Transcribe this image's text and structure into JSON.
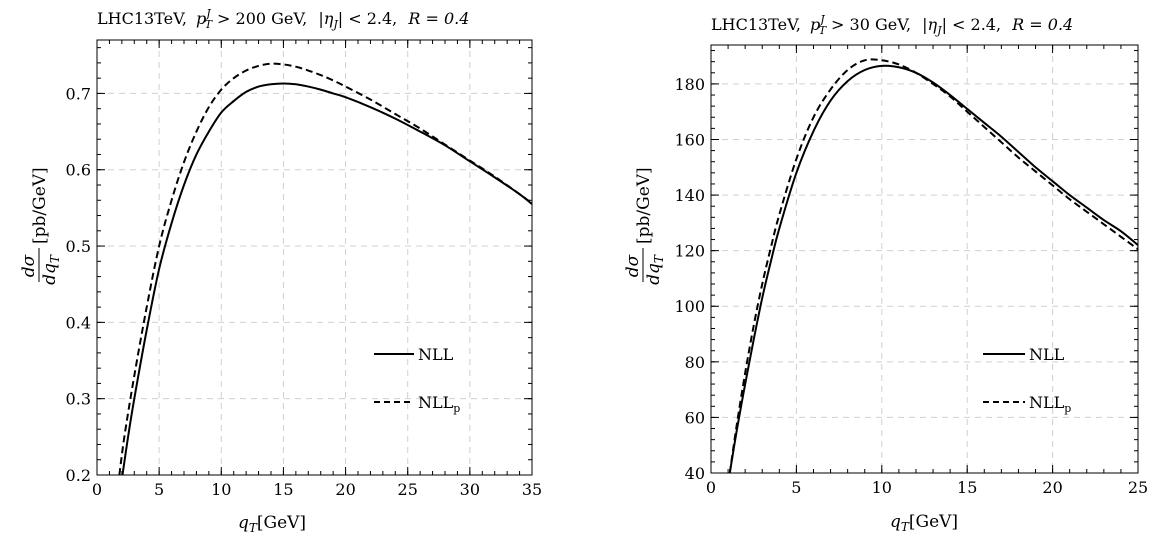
{
  "chart_data": [
    {
      "type": "line",
      "title_parts": {
        "prefix": "LHC13TeV,",
        "pt_sym": "p",
        "pt_sub": "T",
        "pt_sup": "J",
        "pt_cut": "> 200 GeV,",
        "eta_l": "|η",
        "eta_sub": "J",
        "eta_cut": "| < 2.4,",
        "r_lab": "R = 0.4"
      },
      "xlabel": {
        "sym": "q",
        "sub": "T",
        "unit": "[GeV]"
      },
      "ylabel": {
        "num": "dσ",
        "den": "dq",
        "den_sub": "T",
        "unit": "[pb/GeV]"
      },
      "xlim": [
        0,
        35
      ],
      "ylim": [
        0.2,
        0.77
      ],
      "xticks": [
        0,
        5,
        10,
        15,
        20,
        25,
        30,
        35
      ],
      "xticklabels": [
        "0",
        "5",
        "10",
        "15",
        "20",
        "25",
        "30",
        "35"
      ],
      "yticks": [
        0.2,
        0.3,
        0.4,
        0.5,
        0.6,
        0.7
      ],
      "yticklabels": [
        "0.2",
        "0.3",
        "0.4",
        "0.5",
        "0.6",
        "0.7"
      ],
      "grid": true,
      "legend_position": "right",
      "series": [
        {
          "name": "NLL",
          "style": "solid",
          "x": [
            2.05,
            2.5,
            3,
            4,
            5,
            6,
            7,
            8,
            9,
            10,
            11,
            12,
            13,
            14,
            15,
            16,
            17,
            18,
            19,
            20,
            22,
            24,
            26,
            28,
            30,
            32,
            34,
            35
          ],
          "y": [
            0.2,
            0.25,
            0.3,
            0.39,
            0.47,
            0.53,
            0.58,
            0.62,
            0.65,
            0.675,
            0.69,
            0.702,
            0.709,
            0.712,
            0.713,
            0.712,
            0.709,
            0.705,
            0.7,
            0.695,
            0.682,
            0.667,
            0.65,
            0.632,
            0.611,
            0.59,
            0.568,
            0.555
          ]
        },
        {
          "name": "NLL",
          "name_sub": "p",
          "style": "dashed",
          "x": [
            1.8,
            2.2,
            3,
            4,
            5,
            6,
            7,
            8,
            9,
            10,
            11,
            12,
            13,
            14,
            15,
            16,
            17,
            18,
            19,
            20,
            22,
            24,
            26,
            28,
            30,
            32,
            34,
            35
          ],
          "y": [
            0.2,
            0.25,
            0.33,
            0.42,
            0.5,
            0.56,
            0.61,
            0.65,
            0.682,
            0.705,
            0.72,
            0.73,
            0.736,
            0.739,
            0.738,
            0.735,
            0.73,
            0.724,
            0.717,
            0.709,
            0.692,
            0.673,
            0.654,
            0.633,
            0.612,
            0.591,
            0.568,
            0.556
          ]
        }
      ]
    },
    {
      "type": "line",
      "title_parts": {
        "prefix": "LHC13TeV,",
        "pt_sym": "p",
        "pt_sub": "T",
        "pt_sup": "J",
        "pt_cut": "> 30 GeV,",
        "eta_l": "|η",
        "eta_sub": "J",
        "eta_cut": "| < 2.4,",
        "r_lab": "R = 0.4"
      },
      "xlabel": {
        "sym": "q",
        "sub": "T",
        "unit": "[GeV]"
      },
      "ylabel": {
        "num": "dσ",
        "den": "dq",
        "den_sub": "T",
        "unit": "[pb/GeV]"
      },
      "xlim": [
        0,
        25
      ],
      "ylim": [
        40,
        194
      ],
      "xticks": [
        0,
        5,
        10,
        15,
        20,
        25
      ],
      "xticklabels": [
        "0",
        "5",
        "10",
        "15",
        "20",
        "25"
      ],
      "yticks": [
        40,
        60,
        80,
        100,
        120,
        140,
        160,
        180
      ],
      "yticklabels": [
        "40",
        "60",
        "80",
        "100",
        "120",
        "140",
        "160",
        "180"
      ],
      "grid": true,
      "legend_position": "right",
      "series": [
        {
          "name": "NLL",
          "style": "solid",
          "x": [
            1.1,
            1.5,
            2,
            2.5,
            3,
            3.5,
            4,
            5,
            6,
            7,
            8,
            9,
            10,
            11,
            12,
            13,
            14,
            15,
            16,
            17,
            18,
            19,
            20,
            21,
            22,
            23,
            24,
            25
          ],
          "y": [
            40,
            55,
            72,
            88,
            103,
            116,
            128,
            148,
            163,
            174,
            181,
            185,
            186.5,
            186,
            184,
            180.5,
            176,
            171,
            166,
            161,
            155.5,
            150,
            145,
            140,
            135.5,
            131,
            127,
            122
          ]
        },
        {
          "name": "NLL",
          "name_sub": "p",
          "style": "dashed",
          "x": [
            1.1,
            1.5,
            2,
            2.5,
            3,
            3.5,
            4,
            5,
            6,
            7,
            8,
            9,
            10,
            11,
            12,
            13,
            14,
            15,
            16,
            17,
            18,
            19,
            20,
            21,
            22,
            23,
            24,
            25
          ],
          "y": [
            40,
            57,
            76,
            93,
            108,
            121,
            133,
            153,
            168,
            178,
            185,
            188.5,
            188.5,
            187,
            184,
            180,
            175.5,
            170,
            164.5,
            159,
            153.5,
            148.5,
            143.5,
            138.5,
            134,
            129.5,
            125,
            120.5
          ]
        }
      ]
    }
  ]
}
